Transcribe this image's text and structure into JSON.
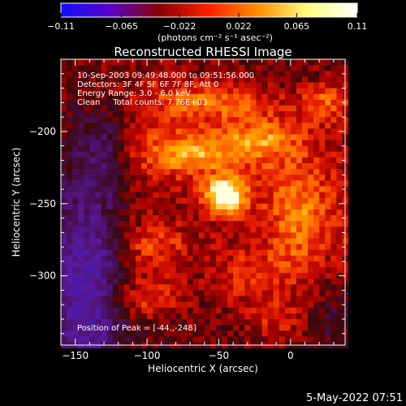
{
  "chart_data": {
    "type": "heatmap",
    "title": "Reconstructed RHESSI Image",
    "xlabel": "Heliocentric X (arcsec)",
    "ylabel": "Heliocentric Y (arcsec)",
    "xlim": [
      -160,
      38
    ],
    "ylim": [
      -348,
      -150
    ],
    "x_ticks": [
      -150,
      -100,
      -50,
      0
    ],
    "x_tick_labels": [
      "−150",
      "−100",
      "−50",
      "0"
    ],
    "y_ticks": [
      -200,
      -250,
      -300
    ],
    "y_tick_labels": [
      "−200",
      "−250",
      "−300"
    ],
    "colorbar": {
      "min": -0.11,
      "max": 0.11,
      "ticks": [
        -0.11,
        -0.065,
        -0.022,
        0.022,
        0.065,
        0.11
      ],
      "tick_labels": [
        "−0.11",
        "−0.065",
        "−0.022",
        "0.022",
        "0.065",
        "0.11"
      ],
      "units_label": "(photons cm⁻² s⁻¹ asec⁻²)",
      "colors": [
        "#1010ff",
        "#5a00c8",
        "#8a0000",
        "#ff2000",
        "#ff9000",
        "#ffff80",
        "#ffffff"
      ]
    },
    "annotations": {
      "time_range": "10-Sep-2003 09:49:48.000 to 09:51:56.000",
      "detectors": "Detectors: 3F 4F 5F 6F 7F 8F, Att 0",
      "energy": "Energy Range: 3.0 - 6.0 keV",
      "clean": "Clean     Total counts: 7.76E+03",
      "peak": "Position of Peak = [-44.,-248]"
    },
    "peak": {
      "x": -44,
      "y": -248
    },
    "footer_date": "5-May-2022 07:51",
    "grid": false,
    "cell_size_arcsec": 4,
    "emission": [
      {
        "x": -45,
        "y": -245,
        "sx": 10,
        "sy": 9,
        "amp": 0.11
      },
      {
        "x": -70,
        "y": -215,
        "sx": 26,
        "sy": 10,
        "amp": 0.055
      },
      {
        "x": -20,
        "y": -205,
        "sx": 18,
        "sy": 10,
        "amp": 0.05
      },
      {
        "x": 5,
        "y": -260,
        "sx": 14,
        "sy": 28,
        "amp": 0.045
      },
      {
        "x": -95,
        "y": -280,
        "sx": 18,
        "sy": 12,
        "amp": 0.04
      },
      {
        "x": -100,
        "y": -315,
        "sx": 20,
        "sy": 10,
        "amp": 0.04
      },
      {
        "x": -30,
        "y": -300,
        "sx": 20,
        "sy": 14,
        "amp": 0.035
      },
      {
        "x": -55,
        "y": -180,
        "sx": 30,
        "sy": 8,
        "amp": 0.045
      },
      {
        "x": 25,
        "y": -180,
        "sx": 12,
        "sy": 10,
        "amp": 0.045
      },
      {
        "x": -10,
        "y": -330,
        "sx": 16,
        "sy": 10,
        "amp": 0.03
      },
      {
        "x": -140,
        "y": -310,
        "sx": 16,
        "sy": 50,
        "amp": -0.06
      },
      {
        "x": -130,
        "y": -210,
        "sx": 14,
        "sy": 24,
        "amp": -0.04
      },
      {
        "x": 30,
        "y": -330,
        "sx": 12,
        "sy": 14,
        "amp": -0.02
      }
    ]
  }
}
